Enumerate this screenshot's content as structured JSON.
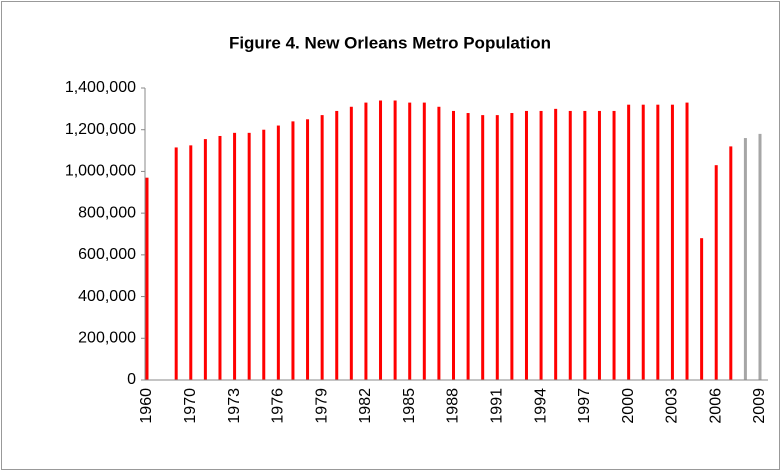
{
  "chart_data": {
    "type": "bar",
    "title": "Figure 4. New Orleans Metro Population",
    "categories": [
      "1960",
      null,
      null,
      "1970",
      null,
      null,
      "1973",
      null,
      null,
      "1976",
      null,
      null,
      "1979",
      null,
      null,
      "1982",
      null,
      null,
      "1985",
      null,
      null,
      "1988",
      null,
      null,
      "1991",
      null,
      null,
      "1994",
      null,
      null,
      "1997",
      null,
      null,
      "2000",
      null,
      null,
      "2003",
      null,
      null,
      "2006",
      null,
      null,
      "2009"
    ],
    "values": [
      970000,
      null,
      1115000,
      1125000,
      1155000,
      1170000,
      1185000,
      1185000,
      1200000,
      1220000,
      1240000,
      1250000,
      1270000,
      1290000,
      1310000,
      1330000,
      1340000,
      1340000,
      1330000,
      1330000,
      1310000,
      1290000,
      1280000,
      1270000,
      1270000,
      1280000,
      1290000,
      1290000,
      1300000,
      1290000,
      1290000,
      1290000,
      1290000,
      1320000,
      1320000,
      1320000,
      1320000,
      1330000,
      680000,
      1030000,
      1120000,
      1160000,
      1180000
    ],
    "colors": [
      "#ff0000",
      "#ff0000",
      "#ff0000",
      "#ff0000",
      "#ff0000",
      "#ff0000",
      "#ff0000",
      "#ff0000",
      "#ff0000",
      "#ff0000",
      "#ff0000",
      "#ff0000",
      "#ff0000",
      "#ff0000",
      "#ff0000",
      "#ff0000",
      "#ff0000",
      "#ff0000",
      "#ff0000",
      "#ff0000",
      "#ff0000",
      "#ff0000",
      "#ff0000",
      "#ff0000",
      "#ff0000",
      "#ff0000",
      "#ff0000",
      "#ff0000",
      "#ff0000",
      "#ff0000",
      "#ff0000",
      "#ff0000",
      "#ff0000",
      "#ff0000",
      "#ff0000",
      "#ff0000",
      "#ff0000",
      "#ff0000",
      "#ff0000",
      "#ff0000",
      "#ff0000",
      "#a6a6a6",
      "#a6a6a6"
    ],
    "ylim": [
      0,
      1400000
    ],
    "yticks": [
      0,
      {
        "value": 200000,
        "label": "200,000"
      },
      {
        "value": 400000,
        "label": "400,000"
      },
      {
        "value": 600000,
        "label": "600,000"
      },
      {
        "value": 800000,
        "label": "800,000"
      },
      {
        "value": 1000000,
        "label": "1,000,000"
      },
      {
        "value": 1200000,
        "label": "1,200,000"
      },
      {
        "value": 1400000,
        "label": "1,400,000"
      }
    ],
    "grid": false
  }
}
